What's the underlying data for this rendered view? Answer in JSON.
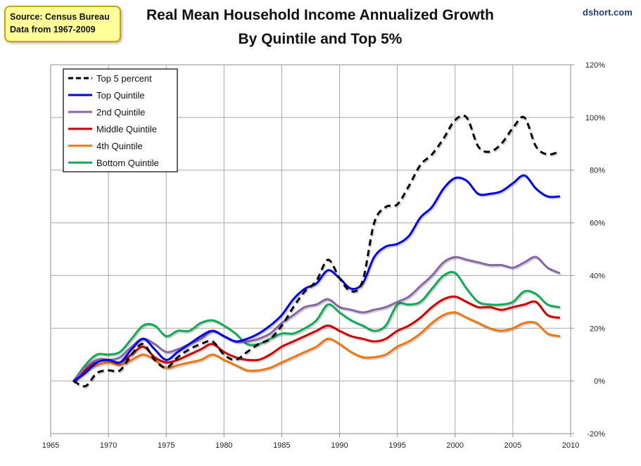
{
  "source_box": {
    "line1": "Source: Census Bureau",
    "line2": "Data from 1967-2009"
  },
  "credit": "dshort.com",
  "chart_data": {
    "type": "line",
    "title": "Real Mean Household Income Annualized Growth",
    "subtitle": "By Quintile and Top 5%",
    "xlim": [
      1965,
      2010
    ],
    "ylim": [
      -20,
      120
    ],
    "x_ticks": [
      1965,
      1970,
      1975,
      1980,
      1985,
      1990,
      1995,
      2000,
      2005,
      2010
    ],
    "x_tick_labels": [
      "1965",
      "1970",
      "1975",
      "1980",
      "1985",
      "1990",
      "1995",
      "2000",
      "2005",
      "2010"
    ],
    "y_ticks": [
      -20,
      0,
      20,
      40,
      60,
      80,
      100,
      120
    ],
    "y_tick_labels": [
      "-20%",
      "0%",
      "20%",
      "40%",
      "60%",
      "80%",
      "100%",
      "120%"
    ],
    "grid": true,
    "legend_position": "top-left",
    "x": [
      1967,
      1968,
      1969,
      1970,
      1971,
      1972,
      1973,
      1974,
      1975,
      1976,
      1977,
      1978,
      1979,
      1980,
      1981,
      1982,
      1983,
      1984,
      1985,
      1986,
      1987,
      1988,
      1989,
      1990,
      1991,
      1992,
      1993,
      1994,
      1995,
      1996,
      1997,
      1998,
      1999,
      2000,
      2001,
      2002,
      2003,
      2004,
      2005,
      2006,
      2007,
      2008,
      2009
    ],
    "series": [
      {
        "name": "Top 5 percent",
        "color": "#000000",
        "dashed": true,
        "values": [
          0,
          -2,
          3,
          4,
          4,
          10,
          14,
          8,
          5,
          9,
          12,
          14,
          15,
          10,
          8,
          11,
          14,
          16,
          21,
          28,
          34,
          38,
          46,
          39,
          34,
          38,
          60,
          66,
          67,
          74,
          82,
          86,
          92,
          99,
          100,
          89,
          87,
          90,
          96,
          100,
          89,
          86,
          87
        ]
      },
      {
        "name": "Top Quintile",
        "color": "#0000ee",
        "dashed": false,
        "values": [
          0,
          3,
          7,
          8,
          7,
          12,
          16,
          12,
          8,
          11,
          14,
          17,
          19,
          17,
          15,
          16,
          18,
          21,
          25,
          31,
          35,
          37,
          42,
          39,
          35,
          37,
          47,
          51,
          52,
          55,
          62,
          66,
          73,
          77,
          76,
          71,
          71,
          72,
          75,
          78,
          73,
          70,
          70
        ]
      },
      {
        "name": "2nd Quintile",
        "color": "#8866aa",
        "dashed": false,
        "values": [
          0,
          5,
          8,
          8,
          9,
          13,
          16,
          14,
          11,
          12,
          14,
          16,
          19,
          17,
          15,
          15,
          16,
          18,
          22,
          25,
          28,
          29,
          31,
          28,
          27,
          26,
          27,
          28,
          30,
          32,
          36,
          40,
          45,
          47,
          46,
          45,
          44,
          44,
          43,
          45,
          47,
          43,
          41
        ]
      },
      {
        "name": "Middle Quintile",
        "color": "#cc0000",
        "dashed": false,
        "values": [
          0,
          4,
          8,
          8,
          7,
          10,
          13,
          9,
          7,
          8,
          10,
          12,
          14,
          11,
          9,
          8,
          8,
          10,
          13,
          15,
          17,
          19,
          21,
          19,
          17,
          16,
          15,
          16,
          19,
          21,
          24,
          28,
          31,
          32,
          30,
          28,
          28,
          27,
          28,
          29,
          30,
          25,
          24
        ]
      },
      {
        "name": "4th Quintile",
        "color": "#ee7711",
        "dashed": false,
        "values": [
          0,
          4,
          6,
          7,
          6,
          8,
          10,
          8,
          5,
          6,
          7,
          8,
          10,
          8,
          6,
          4,
          4,
          5,
          7,
          9,
          11,
          13,
          16,
          14,
          11,
          9,
          9,
          10,
          13,
          15,
          18,
          22,
          25,
          26,
          24,
          22,
          20,
          19,
          20,
          22,
          22,
          18,
          17
        ]
      },
      {
        "name": "Bottom Quintile",
        "color": "#11aa55",
        "dashed": false,
        "values": [
          0,
          6,
          10,
          10,
          11,
          16,
          21,
          21,
          17,
          19,
          19,
          22,
          23,
          21,
          18,
          14,
          14,
          16,
          18,
          18,
          20,
          23,
          29,
          26,
          23,
          21,
          19,
          21,
          29,
          29,
          30,
          35,
          40,
          41,
          35,
          30,
          29,
          29,
          30,
          34,
          33,
          29,
          28
        ]
      }
    ]
  }
}
